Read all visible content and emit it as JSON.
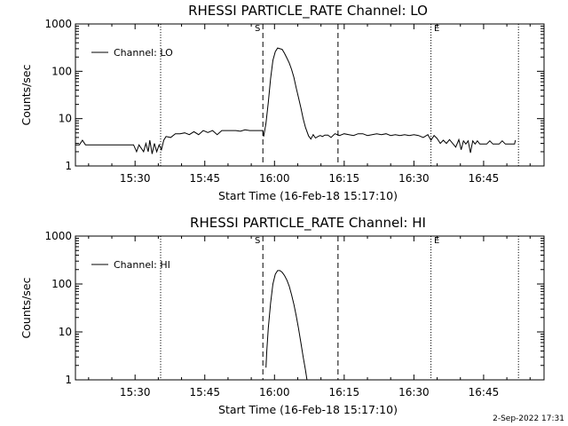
{
  "footer": {
    "timestamp": "2-Sep-2022 17:31"
  },
  "chart_data": [
    {
      "type": "line",
      "title": "RHESSI PARTICLE_RATE Channel: LO",
      "xlabel": "Start Time (16-Feb-18 15:17:10)",
      "ylabel": "Counts/sec",
      "yscale": "log",
      "xlim": [
        "15:17:10",
        "16:58:00"
      ],
      "ylim": [
        1,
        1000
      ],
      "xticks": [
        "15:30",
        "15:45",
        "16:00",
        "16:15",
        "16:30",
        "16:45"
      ],
      "yticks": [
        "1",
        "10",
        "100",
        "1000"
      ],
      "legend": {
        "label": "Channel: LO",
        "position": "top-left"
      },
      "markers": {
        "S": "S",
        "E": "E"
      },
      "vlines_dotted": [
        "15:35:30",
        "16:33:40",
        "16:52:30"
      ],
      "vlines_dashed": [
        "15:57:30",
        "16:13:40"
      ],
      "series": [
        {
          "name": "Channel: LO",
          "points": [
            [
              "15:17:10",
              2.8
            ],
            [
              "15:18:00",
              2.8
            ],
            [
              "15:18:40",
              3.5
            ],
            [
              "15:19:20",
              2.8
            ],
            [
              "15:21:00",
              2.8
            ],
            [
              "15:23:00",
              2.8
            ],
            [
              "15:25:00",
              2.8
            ],
            [
              "15:27:00",
              2.8
            ],
            [
              "15:29:00",
              2.8
            ],
            [
              "15:29:40",
              2.8
            ],
            [
              "15:30:20",
              2.0
            ],
            [
              "15:30:50",
              2.8
            ],
            [
              "15:31:50",
              2.0
            ],
            [
              "15:32:20",
              3.0
            ],
            [
              "15:32:50",
              2.0
            ],
            [
              "15:33:10",
              3.5
            ],
            [
              "15:33:40",
              1.8
            ],
            [
              "15:34:10",
              3.0
            ],
            [
              "15:34:40",
              2.0
            ],
            [
              "15:35:10",
              2.8
            ],
            [
              "15:35:40",
              2.2
            ],
            [
              "15:36:10",
              3.5
            ],
            [
              "15:36:40",
              4.2
            ],
            [
              "15:37:40",
              4.0
            ],
            [
              "15:38:40",
              4.8
            ],
            [
              "15:39:40",
              4.8
            ],
            [
              "15:40:40",
              5.0
            ],
            [
              "15:41:40",
              4.6
            ],
            [
              "15:42:40",
              5.3
            ],
            [
              "15:43:40",
              4.6
            ],
            [
              "15:44:40",
              5.6
            ],
            [
              "15:45:40",
              5.1
            ],
            [
              "15:46:40",
              5.6
            ],
            [
              "15:47:40",
              4.6
            ],
            [
              "15:48:40",
              5.6
            ],
            [
              "15:49:40",
              5.6
            ],
            [
              "15:50:40",
              5.6
            ],
            [
              "15:51:40",
              5.6
            ],
            [
              "15:52:40",
              5.4
            ],
            [
              "15:53:40",
              5.8
            ],
            [
              "15:54:40",
              5.6
            ],
            [
              "15:55:40",
              5.6
            ],
            [
              "15:56:40",
              5.6
            ],
            [
              "15:57:30",
              5.6
            ],
            [
              "15:57:40",
              4.2
            ],
            [
              "15:58:10",
              8
            ],
            [
              "15:58:40",
              22
            ],
            [
              "15:59:10",
              70
            ],
            [
              "15:59:40",
              170
            ],
            [
              "16:00:10",
              260
            ],
            [
              "16:00:40",
              310
            ],
            [
              "16:01:10",
              300
            ],
            [
              "16:01:40",
              290
            ],
            [
              "16:02:10",
              240
            ],
            [
              "16:02:40",
              190
            ],
            [
              "16:03:10",
              150
            ],
            [
              "16:03:40",
              110
            ],
            [
              "16:04:10",
              75
            ],
            [
              "16:04:40",
              45
            ],
            [
              "16:05:10",
              28
            ],
            [
              "16:05:40",
              17
            ],
            [
              "16:06:10",
              10
            ],
            [
              "16:06:40",
              6.5
            ],
            [
              "16:07:20",
              4.3
            ],
            [
              "16:07:50",
              3.7
            ],
            [
              "16:08:20",
              4.6
            ],
            [
              "16:08:50",
              3.9
            ],
            [
              "16:09:20",
              4.2
            ],
            [
              "16:09:50",
              4.4
            ],
            [
              "16:10:20",
              4.2
            ],
            [
              "16:10:50",
              4.5
            ],
            [
              "16:11:30",
              4.5
            ],
            [
              "16:12:10",
              4.0
            ],
            [
              "16:13:00",
              4.8
            ],
            [
              "16:14:00",
              4.4
            ],
            [
              "16:15:00",
              4.8
            ],
            [
              "16:16:00",
              4.6
            ],
            [
              "16:17:00",
              4.4
            ],
            [
              "16:18:00",
              4.8
            ],
            [
              "16:19:00",
              4.8
            ],
            [
              "16:20:00",
              4.4
            ],
            [
              "16:21:00",
              4.6
            ],
            [
              "16:22:00",
              4.8
            ],
            [
              "16:23:00",
              4.6
            ],
            [
              "16:24:00",
              4.8
            ],
            [
              "16:25:00",
              4.4
            ],
            [
              "16:26:00",
              4.6
            ],
            [
              "16:27:00",
              4.4
            ],
            [
              "16:28:00",
              4.6
            ],
            [
              "16:29:00",
              4.4
            ],
            [
              "16:30:00",
              4.6
            ],
            [
              "16:31:00",
              4.4
            ],
            [
              "16:32:00",
              4.0
            ],
            [
              "16:33:00",
              4.6
            ],
            [
              "16:33:40",
              3.5
            ],
            [
              "16:34:20",
              4.4
            ],
            [
              "16:35:00",
              3.8
            ],
            [
              "16:35:40",
              3.0
            ],
            [
              "16:36:20",
              3.5
            ],
            [
              "16:37:00",
              3.0
            ],
            [
              "16:37:40",
              3.6
            ],
            [
              "16:38:20",
              3.0
            ],
            [
              "16:39:00",
              2.5
            ],
            [
              "16:39:40",
              3.6
            ],
            [
              "16:40:10",
              2.2
            ],
            [
              "16:40:40",
              3.4
            ],
            [
              "16:41:10",
              2.9
            ],
            [
              "16:41:40",
              3.4
            ],
            [
              "16:42:10",
              1.9
            ],
            [
              "16:42:40",
              3.4
            ],
            [
              "16:43:10",
              2.9
            ],
            [
              "16:43:40",
              3.4
            ],
            [
              "16:44:10",
              2.9
            ],
            [
              "16:44:50",
              2.9
            ],
            [
              "16:45:40",
              2.9
            ],
            [
              "16:46:20",
              3.4
            ],
            [
              "16:47:00",
              2.9
            ],
            [
              "16:47:40",
              2.9
            ],
            [
              "16:48:20",
              2.9
            ],
            [
              "16:49:00",
              3.4
            ],
            [
              "16:49:40",
              2.9
            ],
            [
              "16:50:20",
              2.9
            ],
            [
              "16:51:00",
              2.9
            ],
            [
              "16:51:40",
              2.9
            ],
            [
              "16:51:50",
              3.5
            ]
          ]
        }
      ]
    },
    {
      "type": "line",
      "title": "RHESSI PARTICLE_RATE Channel: HI",
      "xlabel": "Start Time (16-Feb-18 15:17:10)",
      "ylabel": "Counts/sec",
      "yscale": "log",
      "xlim": [
        "15:17:10",
        "16:58:00"
      ],
      "ylim": [
        1,
        1000
      ],
      "xticks": [
        "15:30",
        "15:45",
        "16:00",
        "16:15",
        "16:30",
        "16:45"
      ],
      "yticks": [
        "1",
        "10",
        "100",
        "1000"
      ],
      "legend": {
        "label": "Channel: HI",
        "position": "top-left"
      },
      "markers": {
        "S": "S",
        "E": "E"
      },
      "vlines_dotted": [
        "15:35:30",
        "16:33:40",
        "16:52:30"
      ],
      "vlines_dashed": [
        "15:57:30",
        "16:13:40"
      ],
      "series": [
        {
          "name": "Channel: HI",
          "points": [
            [
              "15:58:10",
              1.8
            ],
            [
              "15:58:20",
              4
            ],
            [
              "15:58:40",
              12
            ],
            [
              "15:59:10",
              40
            ],
            [
              "15:59:40",
              100
            ],
            [
              "16:00:10",
              160
            ],
            [
              "16:00:40",
              190
            ],
            [
              "16:01:10",
              190
            ],
            [
              "16:01:40",
              175
            ],
            [
              "16:02:10",
              150
            ],
            [
              "16:02:40",
              120
            ],
            [
              "16:03:10",
              90
            ],
            [
              "16:03:40",
              60
            ],
            [
              "16:04:10",
              38
            ],
            [
              "16:04:40",
              22
            ],
            [
              "16:05:10",
              12
            ],
            [
              "16:05:40",
              6
            ],
            [
              "16:06:10",
              3
            ],
            [
              "16:06:40",
              1.6
            ],
            [
              "16:07:00",
              1.0
            ]
          ]
        }
      ]
    }
  ]
}
